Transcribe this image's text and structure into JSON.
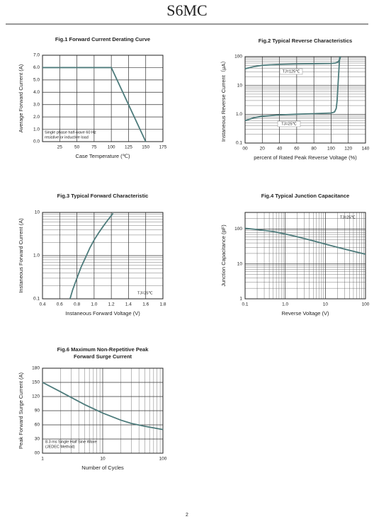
{
  "header": {
    "title": "S6MC"
  },
  "chart_data": [
    {
      "type": "line",
      "title": [
        "Fig.1  Forward Current Derating Curve"
      ],
      "x_label": "Case Temperature (℃)",
      "y_label": "Average Forward Current (A)",
      "x": [
        0,
        100,
        150
      ],
      "values": [
        6,
        6,
        0
      ],
      "color": "#4d7b7b",
      "xlim": [
        0,
        175
      ],
      "xticks": [
        25,
        50,
        75,
        100,
        125,
        150,
        175
      ],
      "ylim": [
        0,
        7
      ],
      "yticks": [
        {
          "value": 0,
          "label": "0.0"
        },
        {
          "value": 1,
          "label": "1.0"
        },
        {
          "value": 2,
          "label": "2.0"
        },
        {
          "value": 3,
          "label": "3.0"
        },
        {
          "value": 4,
          "label": "4.0"
        },
        {
          "value": 5,
          "label": "5.0"
        },
        {
          "value": 6,
          "label": "6.0"
        },
        {
          "value": 7,
          "label": "7.0"
        }
      ],
      "annotations": [
        "Single phase half-wave 60 Hz",
        "resistive or inductive load"
      ],
      "grid": true
    },
    {
      "type": "line",
      "title": [
        "Fig.2  Typical Reverse Characteristics"
      ],
      "x_label": "percent of Rated  Peak Reverse Voltage (%)",
      "y_label": "Instaneous Reverse Current（μA）",
      "series": [
        {
          "name": "TJ=125℃",
          "color": "#4d7b7b",
          "x": [
            0,
            10,
            20,
            40,
            60,
            80,
            100,
            105,
            108,
            110,
            111
          ],
          "values": [
            38,
            45,
            50,
            54,
            56,
            57,
            58,
            60,
            65,
            80,
            100
          ]
        },
        {
          "name": "TJ=25℃",
          "color": "#4d7b7b",
          "x": [
            0,
            10,
            20,
            40,
            60,
            80,
            100,
            104,
            106,
            107,
            108,
            110
          ],
          "values": [
            0.6,
            0.75,
            0.85,
            0.95,
            1.0,
            1.05,
            1.1,
            1.2,
            1.6,
            3,
            10,
            100
          ]
        }
      ],
      "xlim": [
        0,
        140
      ],
      "xticks": [
        {
          "value": 0,
          "label": "00"
        },
        20,
        40,
        60,
        80,
        100,
        120,
        140
      ],
      "ylim": [
        0.1,
        100
      ],
      "yscale": "log",
      "yticks": [
        0.1,
        {
          "value": 1,
          "label": "1.0"
        },
        10,
        100
      ],
      "grid": true
    },
    {
      "type": "line",
      "title": [
        "Fig.3  Typical Forward Characteristic"
      ],
      "x_label": "Instaneous Forward Voltage (V)",
      "y_label": "Instaneous Forward Current  (A)",
      "x": [
        0.72,
        0.75,
        0.8,
        0.85,
        0.9,
        0.95,
        1.0,
        1.05,
        1.1,
        1.15,
        1.22
      ],
      "values": [
        0.1,
        0.16,
        0.3,
        0.55,
        0.9,
        1.5,
        2.3,
        3.3,
        4.6,
        6.3,
        9.5
      ],
      "color": "#4d7b7b",
      "xlim": [
        0.4,
        1.8
      ],
      "xticks": [
        0.4,
        0.6,
        0.8,
        {
          "value": 1,
          "label": "1.0"
        },
        1.2,
        1.4,
        1.6,
        1.8
      ],
      "ylim": [
        0.1,
        10
      ],
      "yscale": "log",
      "yticks": [
        0.1,
        {
          "value": 1,
          "label": "1.0"
        },
        10
      ],
      "annotations": [
        "TJ=25℃"
      ],
      "grid": true
    },
    {
      "type": "line",
      "title": [
        "Fig.4  Typical Junction Capacitance"
      ],
      "x_label": "Reverse  Voltage (V)",
      "y_label": "Junction Capacitance (pF)",
      "x": [
        0.1,
        0.2,
        0.5,
        1,
        2,
        5,
        10,
        20,
        50,
        100
      ],
      "values": [
        105,
        97,
        85,
        72,
        60,
        46,
        37,
        30,
        23,
        19
      ],
      "color": "#4d7b7b",
      "xlim": [
        0.1,
        100
      ],
      "xscale": "log",
      "xticks": [
        0.1,
        {
          "value": 1,
          "label": "1.0"
        },
        10,
        100
      ],
      "ylim": [
        1,
        300
      ],
      "yscale": "log",
      "yticks": [
        1,
        10,
        100
      ],
      "annotations": [
        "TJ=25℃"
      ],
      "grid": true
    },
    {
      "type": "line",
      "title": [
        "Fig.6  Maximum Non-Repetitive Peak",
        "Forward Surge Current"
      ],
      "x_label": "Number of Cycles",
      "y_label": "Peak Forward Surge Current (A)",
      "x": [
        1,
        2,
        3,
        5,
        10,
        20,
        30,
        50,
        100
      ],
      "values": [
        150,
        130,
        118,
        103,
        85,
        70,
        63,
        57,
        50
      ],
      "color": "#4d7b7b",
      "xlim": [
        1,
        100
      ],
      "xscale": "log",
      "xticks": [
        1,
        10,
        100
      ],
      "ylim": [
        0,
        180
      ],
      "yticks": [
        {
          "value": 0,
          "label": "00"
        },
        30,
        60,
        90,
        120,
        150,
        180
      ],
      "annotations": [
        "8.3 ms Single Half Sine Wave",
        "(JEDEC Method)"
      ],
      "grid": true
    }
  ],
  "footer": {
    "page": "2"
  }
}
